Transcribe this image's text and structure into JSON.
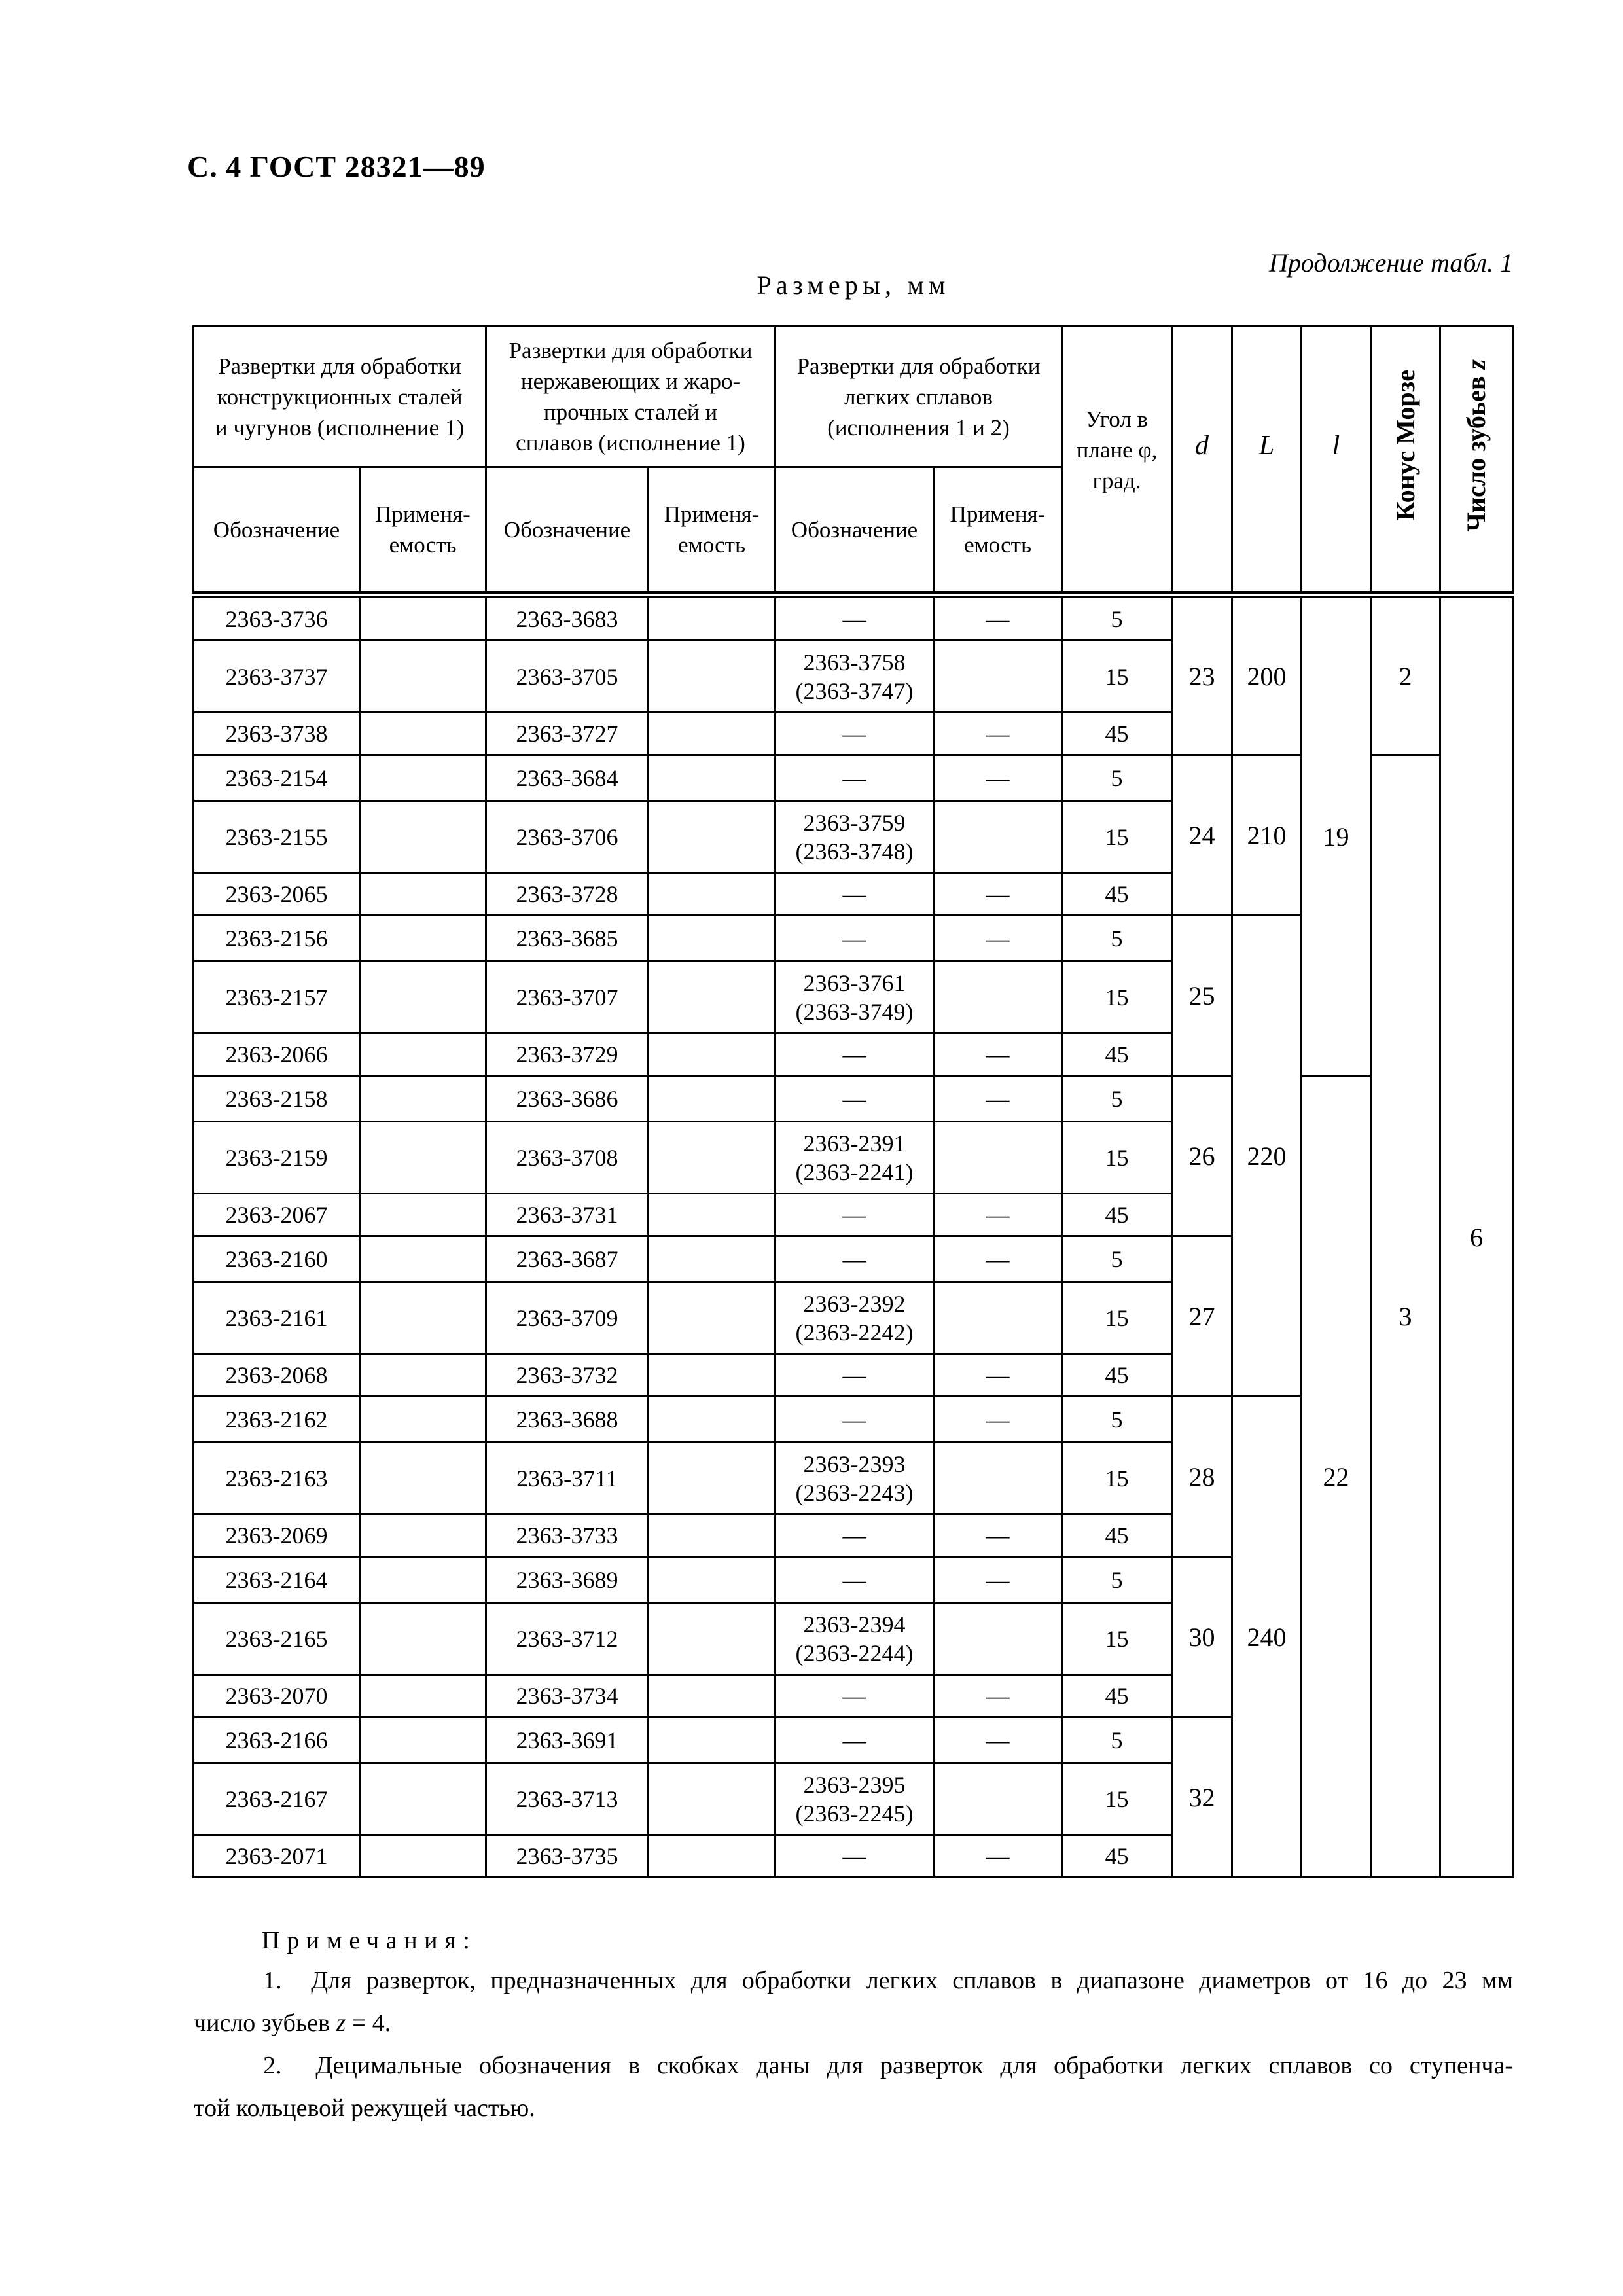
{
  "page": {
    "header_left": "С. 4 ГОСТ 28321—89",
    "continuation": "Продолжение табл. 1",
    "units_caption": "Размеры, мм"
  },
  "table": {
    "dash": "—",
    "groups": [
      {
        "lines": [
          "Развертки для обработки",
          "конструкционных сталей",
          "и чугунов (исполнение 1)"
        ]
      },
      {
        "lines": [
          "Развертки для обработки",
          "нержавеющих и жаро-",
          "прочных сталей и",
          "сплавов (исполнение 1)"
        ]
      },
      {
        "lines": [
          "Развертки для обработки",
          "легких сплавов",
          "(исполнения 1 и 2)"
        ]
      }
    ],
    "sub": {
      "designation": "Обозначение",
      "applicability_lines": [
        "Применя-",
        "емость"
      ]
    },
    "angle_lines": [
      "Угол в",
      "плане φ,",
      "град."
    ],
    "d": "d",
    "L": "L",
    "l": "l",
    "morse": "Конус Морзе",
    "teeth_label": "Число зубьев ",
    "teeth_symbol": "z",
    "rows": [
      {
        "steel": "2363-3736",
        "stainless": "2363-3683",
        "light": null,
        "angle": "5"
      },
      {
        "steel": "2363-3737",
        "stainless": "2363-3705",
        "light": [
          "2363-3758",
          "(2363-3747)"
        ],
        "angle": "15"
      },
      {
        "steel": "2363-3738",
        "stainless": "2363-3727",
        "light": null,
        "angle": "45"
      },
      {
        "steel": "2363-2154",
        "stainless": "2363-3684",
        "light": null,
        "angle": "5"
      },
      {
        "steel": "2363-2155",
        "stainless": "2363-3706",
        "light": [
          "2363-3759",
          "(2363-3748)"
        ],
        "angle": "15"
      },
      {
        "steel": "2363-2065",
        "stainless": "2363-3728",
        "light": null,
        "angle": "45"
      },
      {
        "steel": "2363-2156",
        "stainless": "2363-3685",
        "light": null,
        "angle": "5"
      },
      {
        "steel": "2363-2157",
        "stainless": "2363-3707",
        "light": [
          "2363-3761",
          "(2363-3749)"
        ],
        "angle": "15"
      },
      {
        "steel": "2363-2066",
        "stainless": "2363-3729",
        "light": null,
        "angle": "45"
      },
      {
        "steel": "2363-2158",
        "stainless": "2363-3686",
        "light": null,
        "angle": "5"
      },
      {
        "steel": "2363-2159",
        "stainless": "2363-3708",
        "light": [
          "2363-2391",
          "(2363-2241)"
        ],
        "angle": "15"
      },
      {
        "steel": "2363-2067",
        "stainless": "2363-3731",
        "light": null,
        "angle": "45"
      },
      {
        "steel": "2363-2160",
        "stainless": "2363-3687",
        "light": null,
        "angle": "5"
      },
      {
        "steel": "2363-2161",
        "stainless": "2363-3709",
        "light": [
          "2363-2392",
          "(2363-2242)"
        ],
        "angle": "15"
      },
      {
        "steel": "2363-2068",
        "stainless": "2363-3732",
        "light": null,
        "angle": "45"
      },
      {
        "steel": "2363-2162",
        "stainless": "2363-3688",
        "light": null,
        "angle": "5"
      },
      {
        "steel": "2363-2163",
        "stainless": "2363-3711",
        "light": [
          "2363-2393",
          "(2363-2243)"
        ],
        "angle": "15"
      },
      {
        "steel": "2363-2069",
        "stainless": "2363-3733",
        "light": null,
        "angle": "45"
      },
      {
        "steel": "2363-2164",
        "stainless": "2363-3689",
        "light": null,
        "angle": "5"
      },
      {
        "steel": "2363-2165",
        "stainless": "2363-3712",
        "light": [
          "2363-2394",
          "(2363-2244)"
        ],
        "angle": "15"
      },
      {
        "steel": "2363-2070",
        "stainless": "2363-3734",
        "light": null,
        "angle": "45"
      },
      {
        "steel": "2363-2166",
        "stainless": "2363-3691",
        "light": null,
        "angle": "5"
      },
      {
        "steel": "2363-2167",
        "stainless": "2363-3713",
        "light": [
          "2363-2395",
          "(2363-2245)"
        ],
        "angle": "15"
      },
      {
        "steel": "2363-2071",
        "stainless": "2363-3735",
        "light": null,
        "angle": "45"
      }
    ],
    "spans": [
      {
        "row": 0,
        "col": "d",
        "rows": 3,
        "value": "23"
      },
      {
        "row": 0,
        "col": "L",
        "rows": 3,
        "value": "200"
      },
      {
        "row": 0,
        "col": "l",
        "rows": 9,
        "value": "19"
      },
      {
        "row": 0,
        "col": "morse",
        "rows": 3,
        "value": "2"
      },
      {
        "row": 0,
        "col": "teeth",
        "rows": 24,
        "value": "6"
      },
      {
        "row": 3,
        "col": "d",
        "rows": 3,
        "value": "24"
      },
      {
        "row": 3,
        "col": "L",
        "rows": 3,
        "value": "210"
      },
      {
        "row": 3,
        "col": "morse",
        "rows": 21,
        "value": "3"
      },
      {
        "row": 6,
        "col": "d",
        "rows": 3,
        "value": "25"
      },
      {
        "row": 6,
        "col": "L",
        "rows": 9,
        "value": "220"
      },
      {
        "row": 9,
        "col": "d",
        "rows": 3,
        "value": "26"
      },
      {
        "row": 9,
        "col": "l",
        "rows": 15,
        "value": "22"
      },
      {
        "row": 12,
        "col": "d",
        "rows": 3,
        "value": "27"
      },
      {
        "row": 15,
        "col": "d",
        "rows": 3,
        "value": "28"
      },
      {
        "row": 15,
        "col": "L",
        "rows": 9,
        "value": "240"
      },
      {
        "row": 18,
        "col": "d",
        "rows": 3,
        "value": "30"
      },
      {
        "row": 21,
        "col": "d",
        "rows": 3,
        "value": "32"
      }
    ]
  },
  "notes": {
    "heading": "Примечания:",
    "n1_line1": "1.  Для разверток, предназначенных для обработки легких сплавов в диапазоне диаметров от 16 до 23 мм",
    "n1_line2_pre": "число зубьев ",
    "n1_line2_sym": "z",
    "n1_line2_post": " = 4.",
    "n2_line1": "2.  Децимальные обозначения в скобках даны для разверток для обработки легких сплавов со ступенча-",
    "n2_line2": "той кольцевой режущей частью."
  }
}
